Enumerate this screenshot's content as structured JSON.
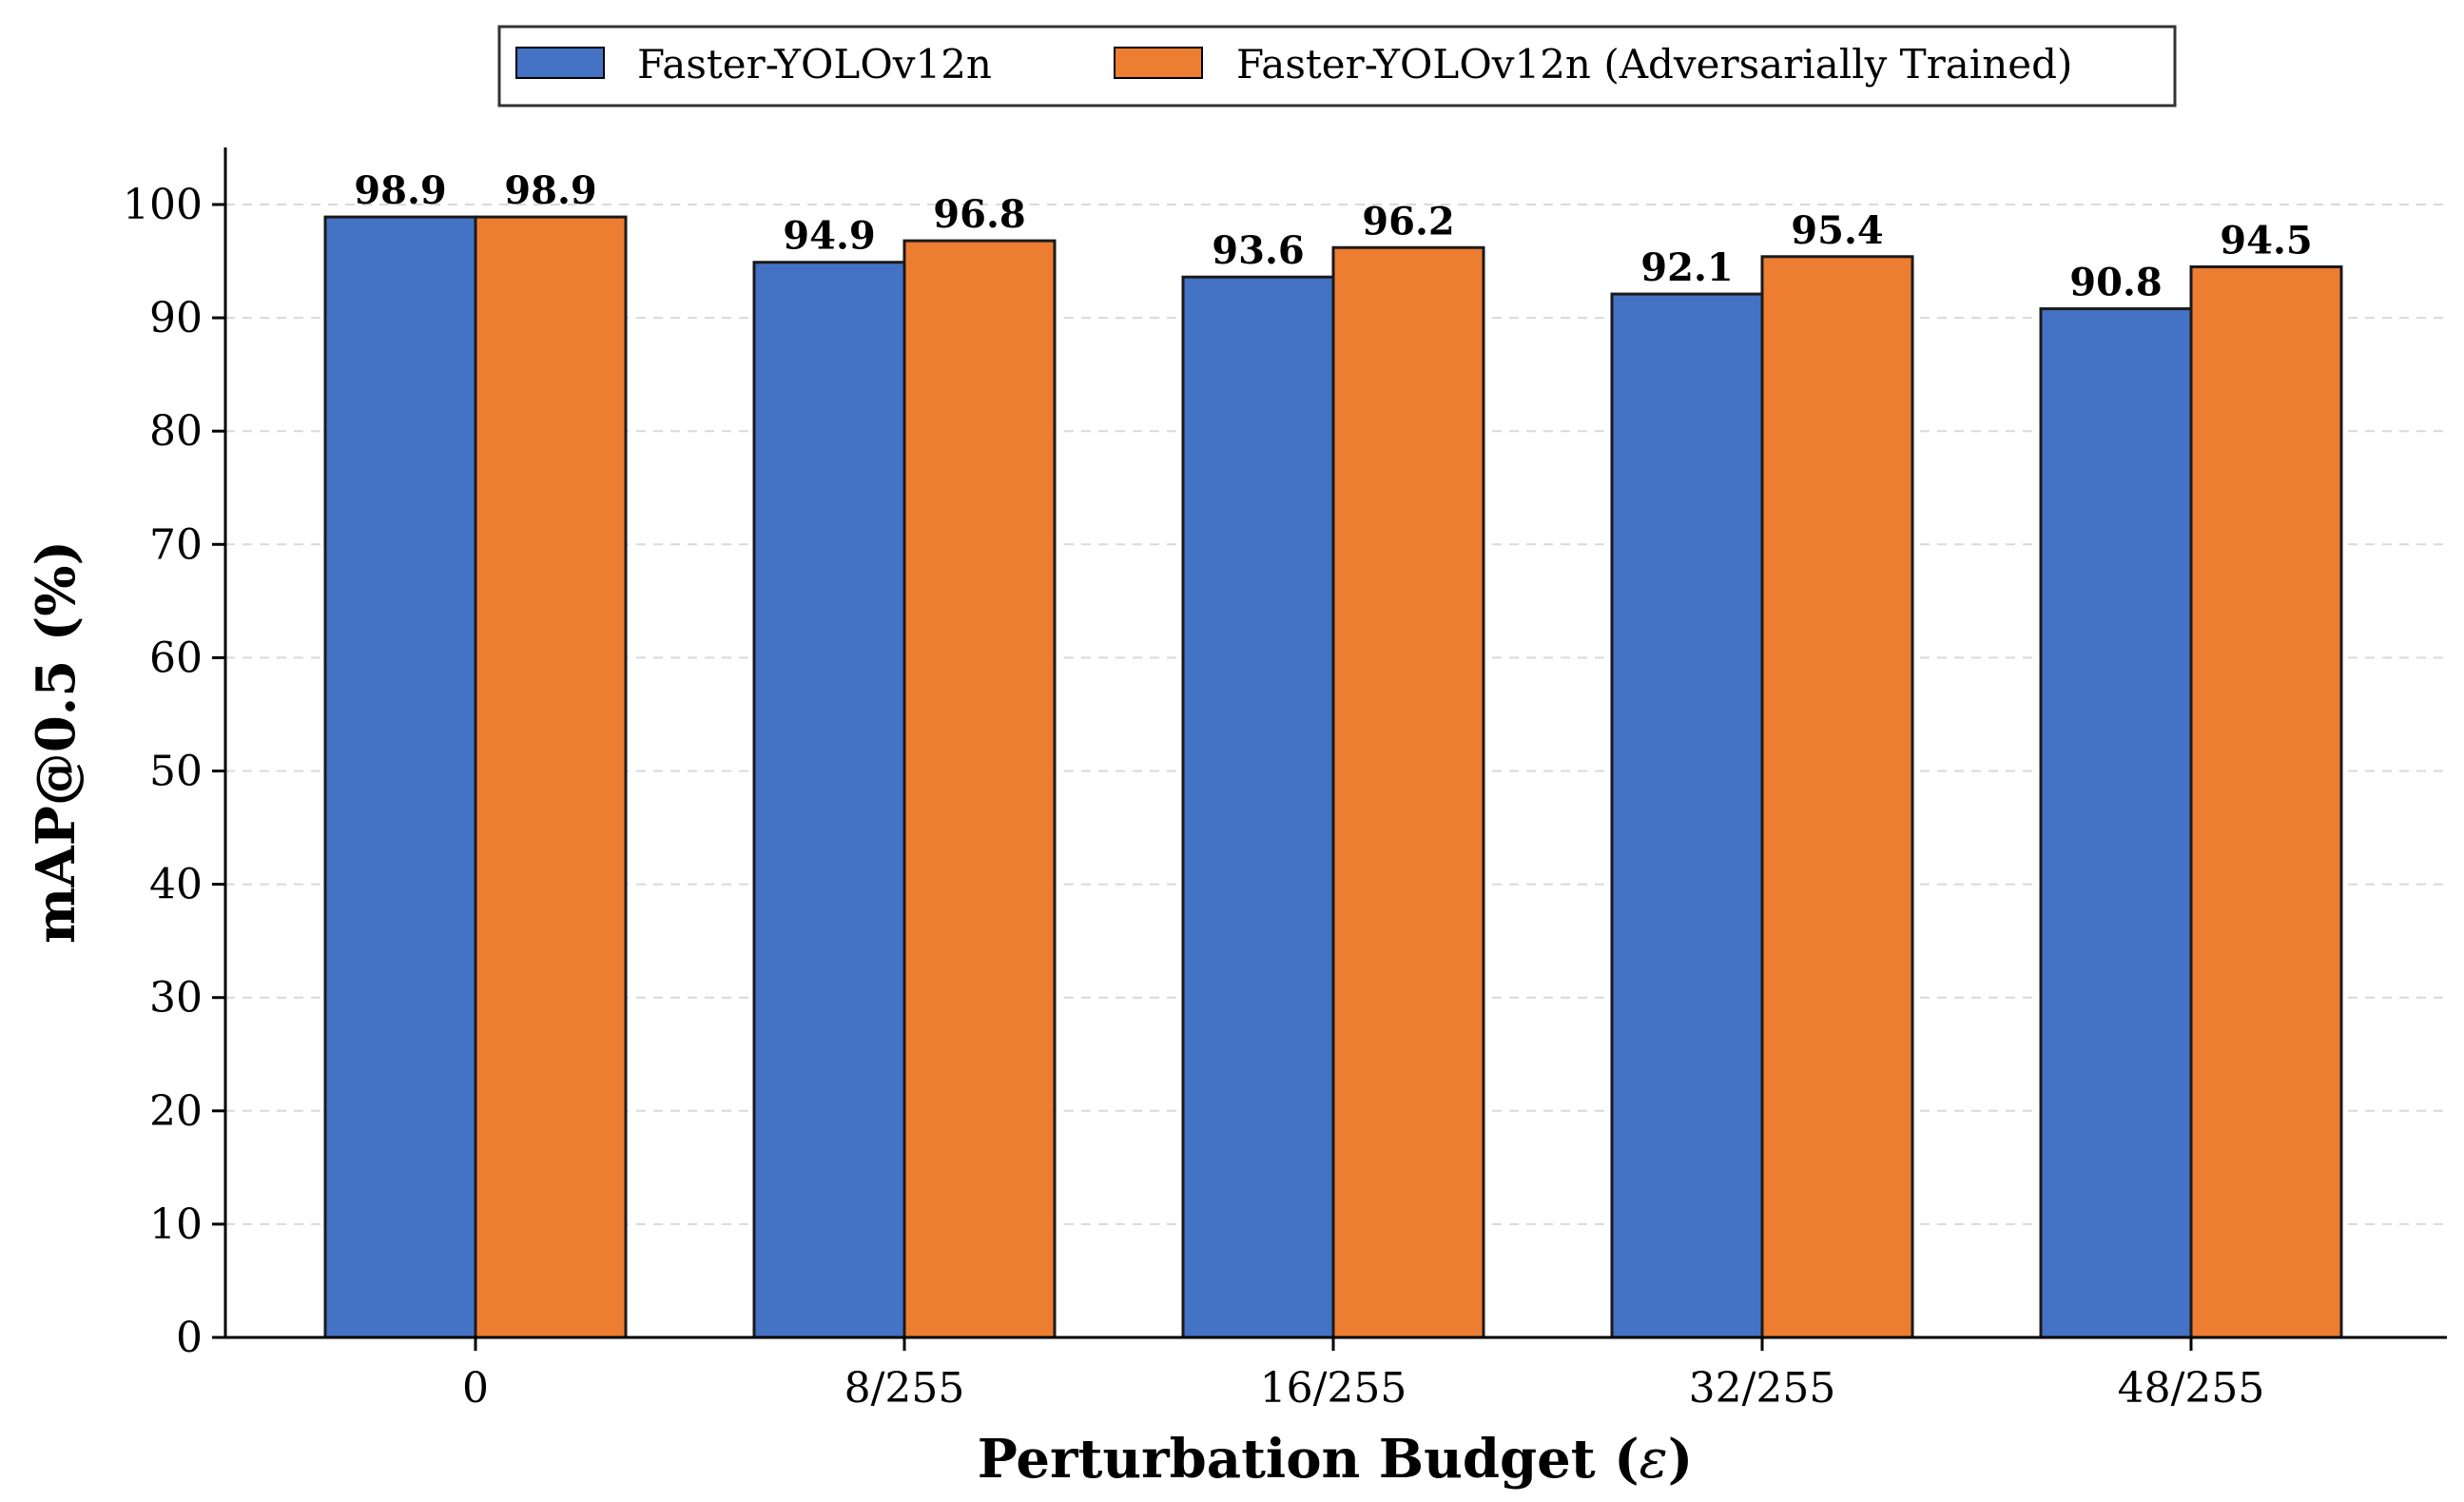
{
  "chart_data": {
    "type": "bar",
    "categories": [
      "0",
      "8/255",
      "16/255",
      "32/255",
      "48/255"
    ],
    "series": [
      {
        "name": "Faster-YOLOv12n",
        "values": [
          98.9,
          94.9,
          93.6,
          92.1,
          90.8
        ],
        "labels": [
          "98.9",
          "94.9",
          "93.6",
          "92.1",
          "90.8"
        ],
        "color": "#4472C4"
      },
      {
        "name": "Faster-YOLOv12n (Adversarially Trained)",
        "values": [
          98.9,
          96.8,
          96.2,
          95.4,
          94.5
        ],
        "labels": [
          "98.9",
          "96.8",
          "96.2",
          "95.4",
          "94.5"
        ],
        "color": "#ED7D31"
      }
    ],
    "xlabel_main": "Perturbation Budget (",
    "xlabel_symbol": "ε",
    "xlabel_end": ")",
    "ylabel": "mAP@0.5 (%)",
    "ylim": [
      0,
      105
    ],
    "yticks": [
      "0",
      "10",
      "20",
      "30",
      "40",
      "50",
      "60",
      "70",
      "80",
      "90",
      "100"
    ],
    "grid": "y-dashed",
    "legend_position": "top-center"
  }
}
